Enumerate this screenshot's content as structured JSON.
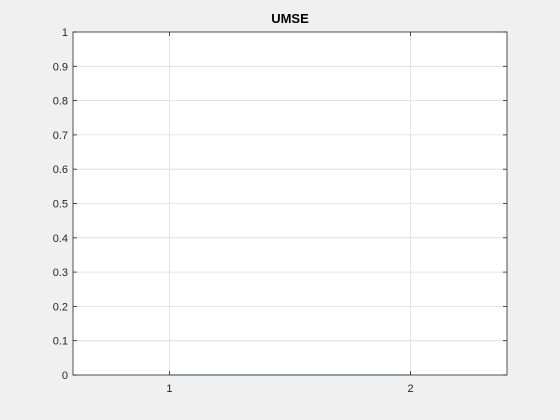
{
  "chart_data": {
    "type": "line",
    "title": "UMSE",
    "xlabel": "",
    "ylabel": "",
    "x_ticks": [
      "1",
      "2"
    ],
    "y_ticks": [
      "0",
      "0.1",
      "0.2",
      "0.3",
      "0.4",
      "0.5",
      "0.6",
      "0.7",
      "0.8",
      "0.9",
      "1"
    ],
    "xlim": [
      0.6,
      2.4
    ],
    "ylim": [
      0,
      1
    ],
    "grid": true,
    "series": [
      {
        "x": [
          1,
          2
        ],
        "values": [
          0,
          0
        ],
        "color": "#0072bd"
      }
    ]
  },
  "colors": {
    "figure_background": "#f0f0f0",
    "axes_background": "#ffffff",
    "axis_color": "#262626",
    "grid_color": "#dcdcdc"
  }
}
